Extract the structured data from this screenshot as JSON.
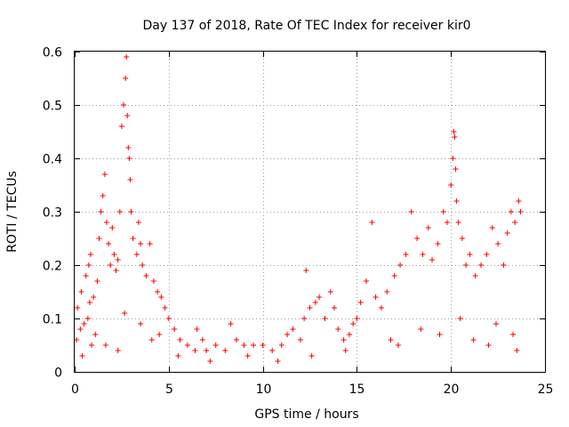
{
  "chart_data": {
    "type": "scatter",
    "title": "Day 137 of 2018, Rate Of TEC Index for receiver kir0",
    "xlabel": "GPS time / hours",
    "ylabel": "ROTI / TECUs",
    "xlim": [
      0,
      25
    ],
    "ylim": [
      0,
      0.6
    ],
    "xticks": [
      0,
      5,
      10,
      15,
      20,
      25
    ],
    "yticks": [
      0,
      0.1,
      0.2,
      0.3,
      0.4,
      0.5,
      0.6
    ],
    "grid": true,
    "marker": "+",
    "color": "#ff0000",
    "series": [
      {
        "name": "ROTI",
        "x": [
          0.1,
          0.15,
          0.3,
          0.35,
          0.5,
          0.6,
          0.7,
          0.75,
          0.8,
          0.85,
          1.0,
          1.2,
          1.3,
          1.4,
          1.5,
          1.6,
          1.7,
          1.8,
          1.9,
          2.0,
          2.1,
          2.2,
          2.3,
          2.4,
          2.5,
          2.6,
          2.7,
          2.75,
          2.8,
          2.85,
          2.9,
          2.95,
          3.0,
          3.1,
          3.3,
          3.4,
          3.5,
          3.6,
          3.8,
          4.0,
          4.2,
          4.4,
          4.6,
          4.8,
          5.0,
          5.3,
          5.6,
          6.0,
          6.4,
          6.5,
          6.8,
          7.0,
          7.5,
          8.0,
          8.3,
          8.6,
          9.0,
          9.5,
          10.0,
          10.5,
          11.0,
          11.3,
          11.6,
          12.0,
          12.2,
          12.3,
          12.5,
          12.8,
          13.0,
          13.3,
          13.6,
          13.8,
          14.0,
          14.3,
          14.6,
          14.8,
          15.0,
          15.2,
          15.5,
          15.8,
          16.0,
          16.3,
          16.6,
          17.0,
          17.3,
          17.6,
          17.9,
          18.2,
          18.5,
          18.8,
          19.0,
          19.3,
          19.6,
          19.8,
          20.0,
          20.1,
          20.15,
          20.2,
          20.25,
          20.3,
          20.4,
          20.6,
          20.8,
          21.0,
          21.3,
          21.6,
          21.9,
          22.2,
          22.5,
          22.8,
          23.0,
          23.2,
          23.4,
          23.6,
          23.7,
          0.4,
          0.9,
          1.1,
          2.3,
          3.5,
          4.5,
          5.5,
          7.2,
          9.2,
          10.8,
          12.6,
          14.4,
          16.8,
          18.4,
          19.4,
          21.2,
          22.4,
          23.3,
          1.65,
          2.65,
          4.1,
          17.2,
          20.5,
          22.0,
          23.5
        ],
        "y": [
          0.06,
          0.12,
          0.08,
          0.15,
          0.09,
          0.18,
          0.1,
          0.2,
          0.13,
          0.22,
          0.14,
          0.17,
          0.25,
          0.3,
          0.33,
          0.37,
          0.28,
          0.24,
          0.2,
          0.27,
          0.22,
          0.19,
          0.21,
          0.3,
          0.46,
          0.5,
          0.55,
          0.59,
          0.48,
          0.42,
          0.4,
          0.36,
          0.3,
          0.25,
          0.22,
          0.28,
          0.24,
          0.2,
          0.18,
          0.24,
          0.17,
          0.15,
          0.14,
          0.12,
          0.1,
          0.08,
          0.06,
          0.05,
          0.04,
          0.08,
          0.06,
          0.04,
          0.05,
          0.04,
          0.09,
          0.06,
          0.05,
          0.05,
          0.05,
          0.04,
          0.05,
          0.07,
          0.08,
          0.06,
          0.1,
          0.19,
          0.12,
          0.13,
          0.14,
          0.1,
          0.15,
          0.12,
          0.08,
          0.06,
          0.07,
          0.09,
          0.1,
          0.13,
          0.17,
          0.28,
          0.14,
          0.12,
          0.15,
          0.18,
          0.2,
          0.22,
          0.3,
          0.25,
          0.22,
          0.27,
          0.21,
          0.24,
          0.3,
          0.28,
          0.35,
          0.4,
          0.45,
          0.44,
          0.38,
          0.32,
          0.28,
          0.25,
          0.2,
          0.22,
          0.18,
          0.2,
          0.22,
          0.27,
          0.24,
          0.2,
          0.26,
          0.3,
          0.28,
          0.32,
          0.3,
          0.03,
          0.05,
          0.07,
          0.04,
          0.09,
          0.07,
          0.03,
          0.02,
          0.03,
          0.02,
          0.03,
          0.04,
          0.06,
          0.08,
          0.07,
          0.06,
          0.09,
          0.07,
          0.05,
          0.11,
          0.06,
          0.05,
          0.1,
          0.05,
          0.04
        ]
      }
    ]
  }
}
